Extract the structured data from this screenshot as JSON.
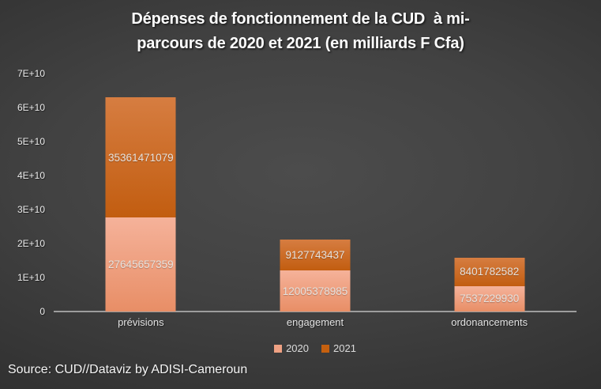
{
  "chart_data": {
    "type": "bar",
    "stacked": true,
    "title": "Dépenses de fonctionnement de la CUD  à mi-parcours de 2020 et 2021 (en milliards F Cfa)",
    "title_lines": [
      "Dépenses de fonctionnement de la CUD  à mi-",
      "parcours de 2020 et 2021 (en milliards F Cfa)"
    ],
    "categories": [
      "prévisions",
      "engagement",
      "ordonancements"
    ],
    "series": [
      {
        "name": "2020",
        "values": [
          27645657359,
          12005378985,
          7537229930
        ],
        "color_top": "#f5b29a",
        "color_bottom": "#e88e66",
        "legend_color": "#efa183"
      },
      {
        "name": "2021",
        "values": [
          35361471079,
          9127743437,
          8401782582
        ],
        "color_top": "#d67d41",
        "color_bottom": "#c25d10",
        "legend_color": "#c5600f"
      }
    ],
    "ylim": [
      0,
      70000000000
    ],
    "yticks": [
      "0",
      "1E+10",
      "2E+10",
      "3E+10",
      "4E+10",
      "5E+10",
      "6E+10",
      "7E+10"
    ],
    "grid": false,
    "legend_position": "bottom",
    "axis_color": "#9d9d9d",
    "background": "#3a3a3a"
  },
  "source": {
    "text": "Source: CUD//Dataviz by ADISI-Cameroun"
  }
}
